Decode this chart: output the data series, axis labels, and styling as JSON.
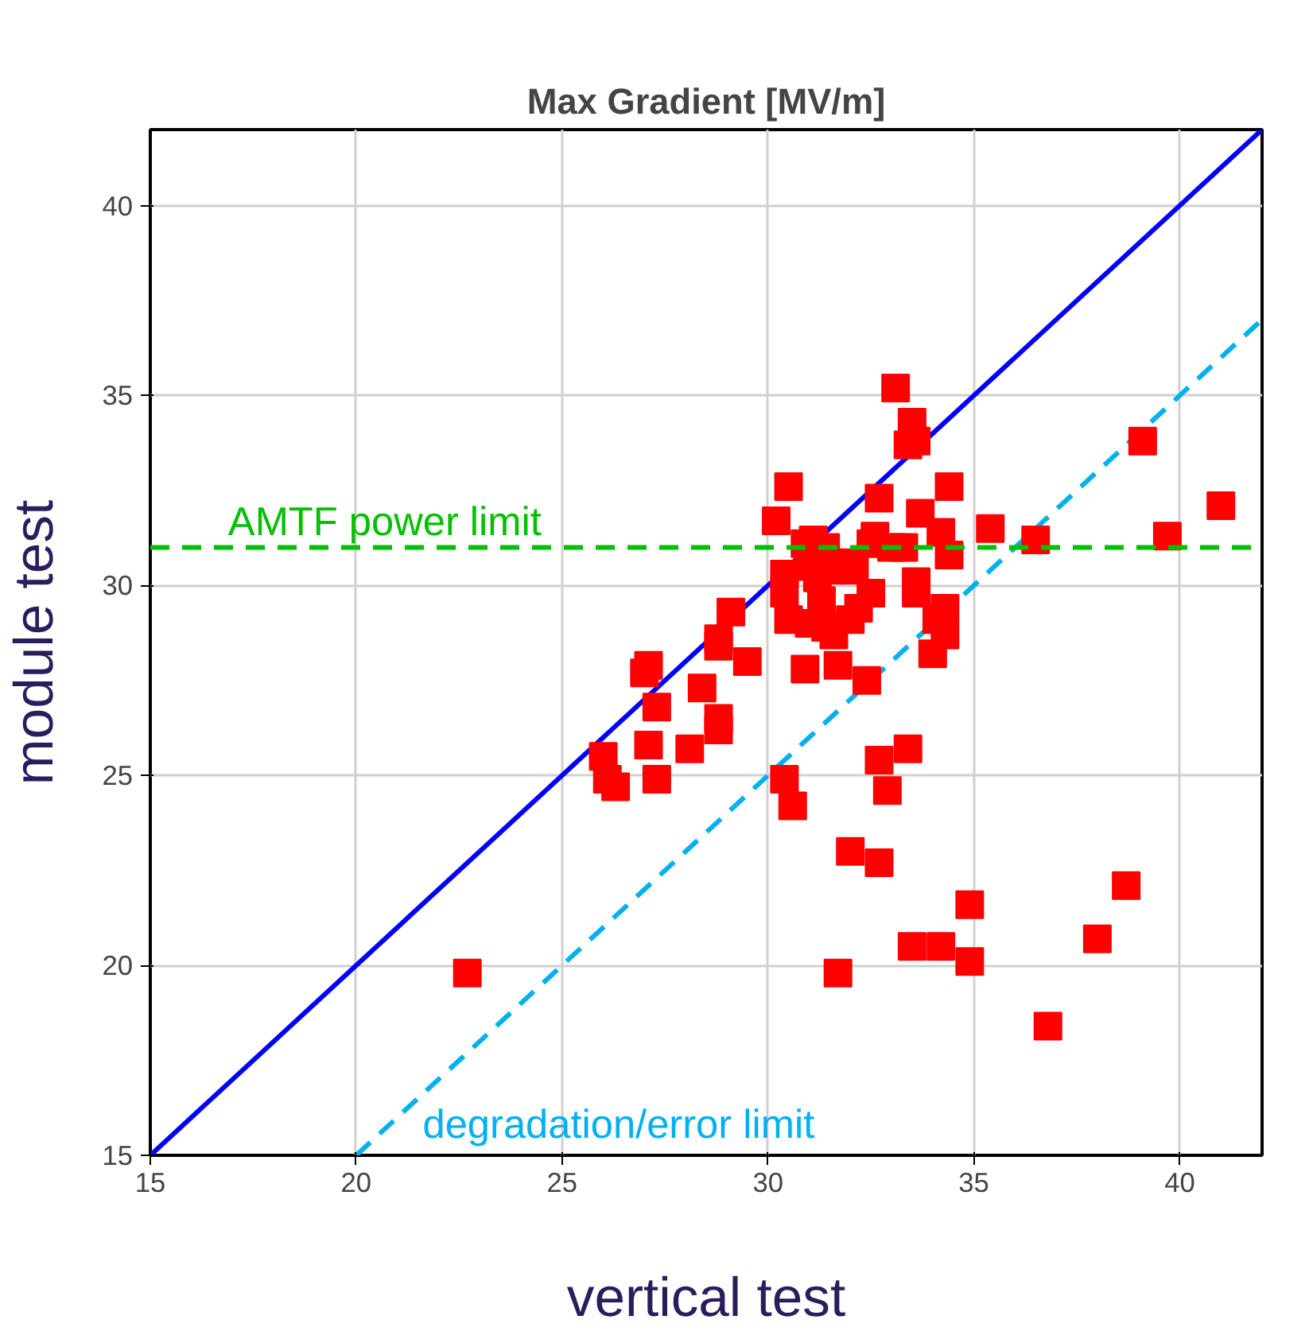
{
  "chart_data": {
    "type": "scatter",
    "title": "Max Gradient [MV/m]",
    "xlabel": "vertical test",
    "ylabel": "module test",
    "xlim": [
      15,
      42
    ],
    "ylim": [
      15,
      42
    ],
    "xticks": [
      15,
      20,
      25,
      30,
      35,
      40
    ],
    "yticks": [
      15,
      20,
      25,
      30,
      35,
      40
    ],
    "grid": true,
    "series": [
      {
        "marker": "square",
        "color": "#ff0000",
        "x": [
          22.7,
          26.0,
          26.1,
          26.3,
          27.0,
          27.1,
          27.1,
          27.3,
          27.3,
          28.1,
          28.4,
          28.8,
          28.8,
          28.8,
          28.8,
          29.1,
          29.5,
          30.2,
          30.4,
          30.4,
          30.4,
          30.5,
          30.5,
          30.6,
          30.9,
          30.9,
          31.0,
          31.0,
          31.1,
          31.2,
          31.3,
          31.4,
          31.4,
          31.5,
          31.6,
          31.7,
          31.7,
          31.9,
          32.0,
          32.0,
          32.1,
          32.2,
          32.4,
          32.5,
          32.5,
          32.6,
          32.7,
          32.7,
          32.7,
          32.9,
          33.0,
          33.1,
          33.3,
          33.4,
          33.4,
          33.5,
          33.5,
          33.6,
          33.6,
          33.6,
          33.7,
          34.0,
          34.1,
          34.2,
          34.2,
          34.3,
          34.3,
          34.4,
          34.4,
          34.9,
          34.9,
          35.4,
          36.5,
          36.8,
          38.0,
          38.7,
          39.1,
          39.7,
          41.0
        ],
        "values": [
          19.8,
          25.5,
          24.9,
          24.7,
          27.7,
          27.9,
          25.8,
          26.8,
          24.9,
          25.7,
          27.3,
          28.6,
          28.4,
          26.5,
          26.2,
          29.3,
          28.0,
          31.7,
          29.8,
          30.3,
          24.9,
          32.6,
          29.1,
          24.2,
          27.8,
          31.1,
          30.5,
          29.0,
          31.2,
          30.2,
          29.6,
          31.0,
          28.9,
          30.4,
          28.7,
          27.9,
          19.8,
          30.6,
          23.0,
          29.1,
          30.4,
          29.4,
          27.5,
          29.8,
          31.1,
          31.3,
          32.3,
          25.4,
          22.7,
          24.6,
          31.0,
          35.2,
          31.0,
          25.7,
          33.7,
          34.3,
          20.5,
          33.8,
          29.8,
          30.1,
          31.9,
          28.2,
          29.1,
          20.5,
          31.4,
          29.4,
          28.7,
          30.8,
          32.6,
          21.6,
          20.1,
          31.5,
          31.2,
          18.4,
          20.7,
          22.1,
          33.8,
          31.3,
          32.1
        ]
      },
      {
        "type": "line",
        "color": "#0000ff",
        "line_style": "solid",
        "x": [
          15,
          42
        ],
        "values": [
          15,
          42
        ]
      },
      {
        "type": "line",
        "color": "#00b0f0",
        "line_style": "dashed",
        "x": [
          20,
          42
        ],
        "values": [
          15,
          37
        ]
      }
    ],
    "ref_lines": [
      {
        "axis": "y",
        "value": 31,
        "label": "AMTF power limit",
        "color": "#00c000",
        "line_style": "dashed"
      }
    ],
    "annotations": [
      "degradation/error limit"
    ]
  }
}
